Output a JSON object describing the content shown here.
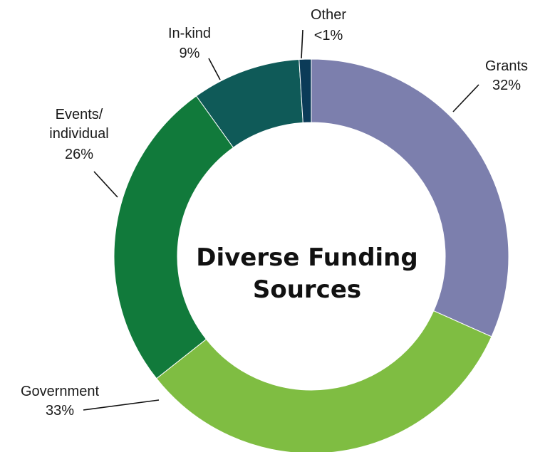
{
  "chart_data": {
    "type": "pie",
    "variant": "donut",
    "title": "Diverse Funding Sources",
    "title_lines": [
      "Diverse Funding",
      "Sources"
    ],
    "slices": [
      {
        "label": "Grants",
        "value": 32,
        "value_label": "32%",
        "color": "#7c7fad"
      },
      {
        "label": "Government",
        "value": 33,
        "value_label": "33%",
        "color": "#7fbd42"
      },
      {
        "label": "Events/ individual",
        "label_lines": [
          "Events/",
          "individual"
        ],
        "value": 26,
        "value_label": "26%",
        "color": "#117a3b"
      },
      {
        "label": "In-kind",
        "value": 9,
        "value_label": "9%",
        "color": "#0f5a58"
      },
      {
        "label": "Other",
        "value": 1,
        "value_label": "<1%",
        "color": "#0b3b58"
      }
    ],
    "legend": "none"
  }
}
